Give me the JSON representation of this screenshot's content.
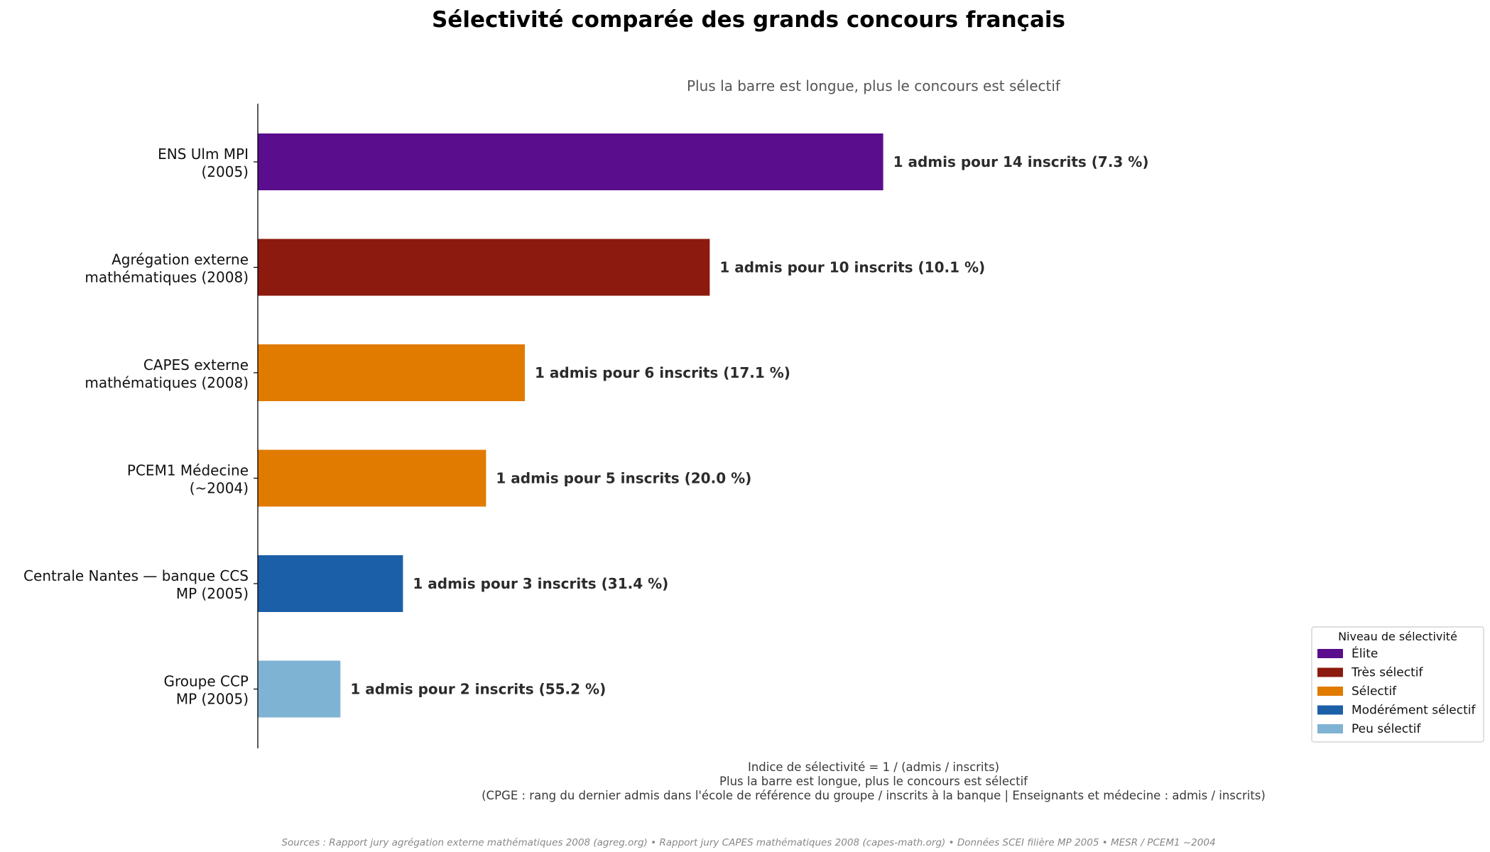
{
  "chart_data": {
    "type": "bar",
    "orientation": "horizontal",
    "title": "Sélectivité comparée des grands concours français",
    "subtitle": "Plus la barre est longue, plus le concours est sélectif",
    "categories": [
      [
        "ENS Ulm MPI",
        "(2005)"
      ],
      [
        "Agrégation externe",
        "mathématiques (2008)"
      ],
      [
        "CAPES externe",
        "mathématiques (2008)"
      ],
      [
        "PCEM1 Médecine",
        "(~2004)"
      ],
      [
        "Centrale Nantes — banque CCS",
        "MP (2005)"
      ],
      [
        "Groupe CCP",
        "MP (2005)"
      ]
    ],
    "values": [
      13.7,
      9.9,
      5.85,
      5.0,
      3.18,
      1.81
    ],
    "value_labels": [
      "1 admis pour 14 inscrits  (7.3 %)",
      "1 admis pour 10 inscrits  (10.1 %)",
      "1 admis pour 6 inscrits  (17.1 %)",
      "1 admis pour 5 inscrits  (20.0 %)",
      "1 admis pour 3 inscrits  (31.4 %)",
      "1 admis pour 2 inscrits  (55.2 %)"
    ],
    "bar_levels": [
      0,
      1,
      2,
      2,
      3,
      4
    ],
    "xlim": [
      0,
      18
    ],
    "grid": false,
    "legend": {
      "title": "Niveau de sélectivité",
      "placement": "bottom-right",
      "entries": [
        {
          "label": "Élite",
          "color": "#5a0d8c"
        },
        {
          "label": "Très sélectif",
          "color": "#8c1a0e"
        },
        {
          "label": "Sélectif",
          "color": "#e07b00"
        },
        {
          "label": "Modérément sélectif",
          "color": "#1b5fa8"
        },
        {
          "label": "Peu sélectif",
          "color": "#7fb3d3"
        }
      ]
    },
    "notes": [
      "Indice de sélectivité  =  1 / (admis / inscrits)",
      "Plus la barre est longue, plus le concours est sélectif",
      "(CPGE : rang du dernier admis dans l'école de référence du groupe / inscrits à la banque  |  Enseignants et médecine : admis / inscrits)"
    ],
    "source": "Sources : Rapport jury agrégation externe mathématiques 2008 (agreg.org)  •  Rapport jury CAPES mathématiques 2008 (capes-math.org)  •  Données SCEI filière MP 2005  •  MESR / PCEM1 ~2004"
  }
}
